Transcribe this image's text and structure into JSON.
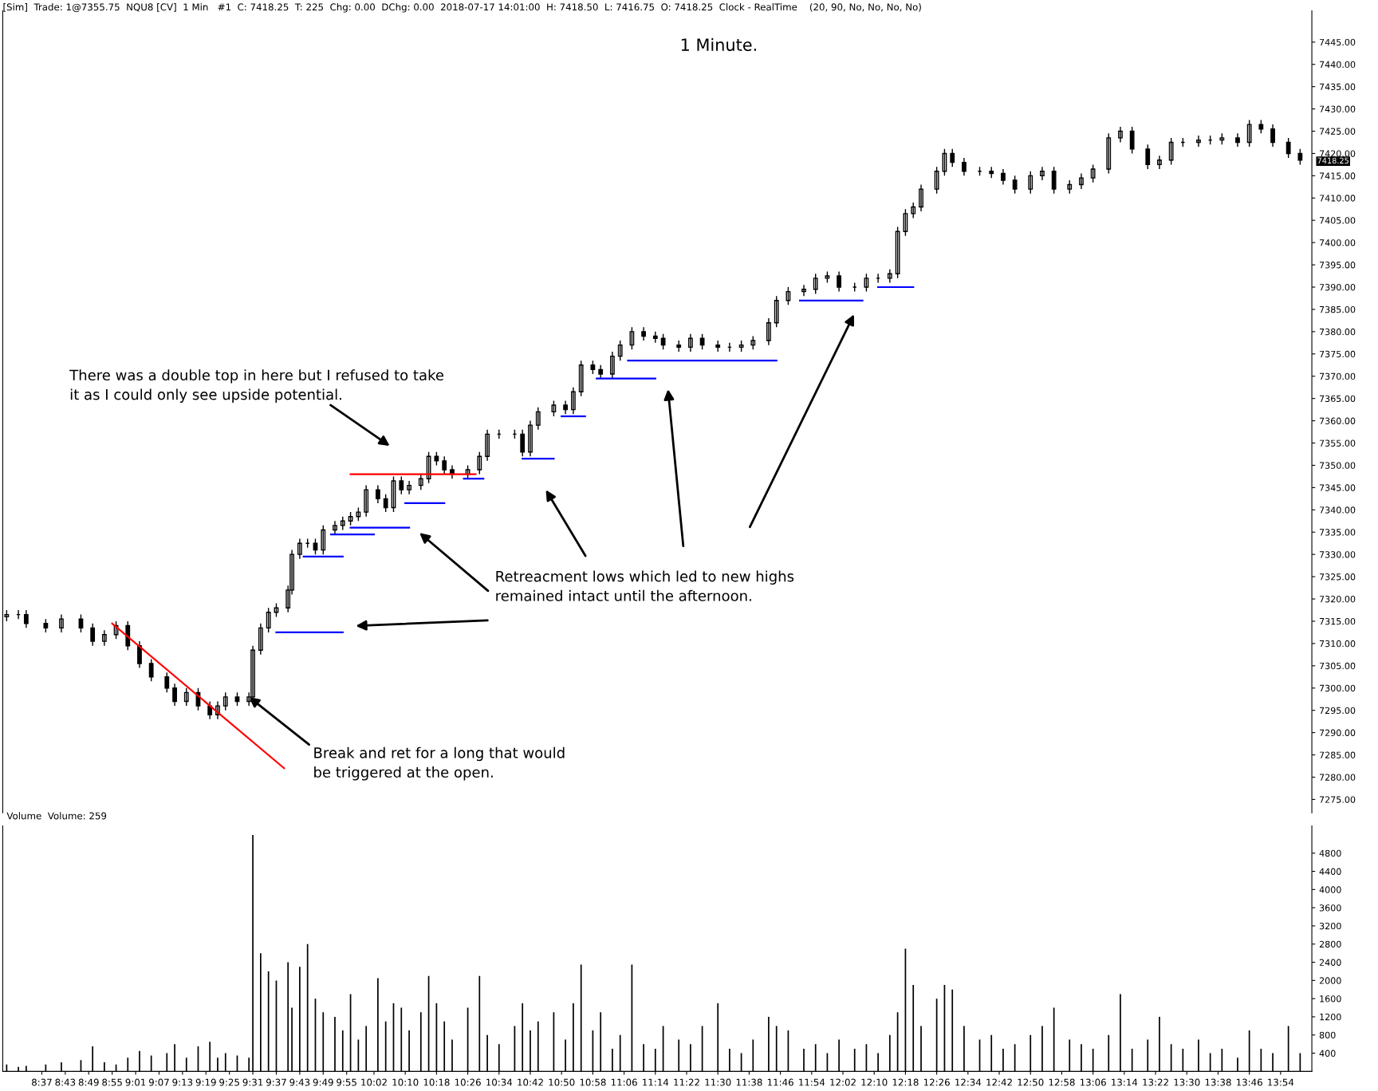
{
  "chart_data": [
    {
      "type": "candlestick",
      "title": "1 Minute.",
      "x": [
        "2018-07-17T08:28",
        "2018-07-17T08:31",
        "2018-07-17T08:33",
        "2018-07-17T08:38",
        "2018-07-17T08:42",
        "2018-07-17T08:47",
        "2018-07-17T08:50",
        "2018-07-17T08:53",
        "2018-07-17T08:56",
        "2018-07-17T08:59",
        "2018-07-17T09:02",
        "2018-07-17T09:05",
        "2018-07-17T09:09",
        "2018-07-17T09:11",
        "2018-07-17T09:14",
        "2018-07-17T09:17",
        "2018-07-17T09:20",
        "2018-07-17T09:22",
        "2018-07-17T09:24",
        "2018-07-17T09:27",
        "2018-07-17T09:30",
        "2018-07-17T09:31",
        "2018-07-17T09:33",
        "2018-07-17T09:35",
        "2018-07-17T09:37",
        "2018-07-17T09:40",
        "2018-07-17T09:41",
        "2018-07-17T09:43",
        "2018-07-17T09:45",
        "2018-07-17T09:47",
        "2018-07-17T09:49",
        "2018-07-17T09:52",
        "2018-07-17T09:54",
        "2018-07-17T09:56",
        "2018-07-17T09:58",
        "2018-07-17T10:00",
        "2018-07-17T10:03",
        "2018-07-17T10:05",
        "2018-07-17T10:07",
        "2018-07-17T10:09",
        "2018-07-17T10:11",
        "2018-07-17T10:14",
        "2018-07-17T10:16",
        "2018-07-17T10:18",
        "2018-07-17T10:20",
        "2018-07-17T10:22",
        "2018-07-17T10:26",
        "2018-07-17T10:29",
        "2018-07-17T10:31",
        "2018-07-17T10:34",
        "2018-07-17T10:38",
        "2018-07-17T10:40",
        "2018-07-17T10:42",
        "2018-07-17T10:44",
        "2018-07-17T10:48",
        "2018-07-17T10:51",
        "2018-07-17T10:53",
        "2018-07-17T10:55",
        "2018-07-17T10:58",
        "2018-07-17T11:00",
        "2018-07-17T11:03",
        "2018-07-17T11:05",
        "2018-07-17T11:08",
        "2018-07-17T11:11",
        "2018-07-17T11:14",
        "2018-07-17T11:16",
        "2018-07-17T11:20",
        "2018-07-17T11:23",
        "2018-07-17T11:26",
        "2018-07-17T11:30",
        "2018-07-17T11:33",
        "2018-07-17T11:36",
        "2018-07-17T11:39",
        "2018-07-17T11:43",
        "2018-07-17T11:45",
        "2018-07-17T11:48",
        "2018-07-17T11:52",
        "2018-07-17T11:55",
        "2018-07-17T11:58",
        "2018-07-17T12:01",
        "2018-07-17T12:05",
        "2018-07-17T12:08",
        "2018-07-17T12:11",
        "2018-07-17T12:14",
        "2018-07-17T12:16",
        "2018-07-17T12:18",
        "2018-07-17T12:20",
        "2018-07-17T12:22",
        "2018-07-17T12:26",
        "2018-07-17T12:28",
        "2018-07-17T12:30",
        "2018-07-17T12:33",
        "2018-07-17T12:37",
        "2018-07-17T12:40",
        "2018-07-17T12:43",
        "2018-07-17T12:46",
        "2018-07-17T12:50",
        "2018-07-17T12:53",
        "2018-07-17T12:56",
        "2018-07-17T13:00",
        "2018-07-17T13:03",
        "2018-07-17T13:06",
        "2018-07-17T13:10",
        "2018-07-17T13:13",
        "2018-07-17T13:16",
        "2018-07-17T13:20",
        "2018-07-17T13:23",
        "2018-07-17T13:26",
        "2018-07-17T13:29",
        "2018-07-17T13:33",
        "2018-07-17T13:36",
        "2018-07-17T13:39",
        "2018-07-17T13:43",
        "2018-07-17T13:46",
        "2018-07-17T13:49",
        "2018-07-17T13:52",
        "2018-07-17T13:56",
        "2018-07-17T13:59"
      ],
      "ohlc": [
        [
          7316,
          7317.5,
          7315,
          7316.5
        ],
        [
          7316.5,
          7317.5,
          7315.5,
          7316.5
        ],
        [
          7316.5,
          7317.5,
          7313.5,
          7314.5
        ],
        [
          7314.5,
          7315.5,
          7312.5,
          7313.5
        ],
        [
          7313.5,
          7316.5,
          7312.5,
          7315.5
        ],
        [
          7315.5,
          7316.5,
          7312.5,
          7313.5
        ],
        [
          7313.5,
          7314.5,
          7309.5,
          7310.5
        ],
        [
          7310.5,
          7313,
          7309.5,
          7312
        ],
        [
          7312,
          7315,
          7311,
          7314
        ],
        [
          7314,
          7315,
          7308.5,
          7309.5
        ],
        [
          7309.5,
          7310.5,
          7304.5,
          7305.5
        ],
        [
          7305.5,
          7306.5,
          7301.5,
          7302.5
        ],
        [
          7302.5,
          7303.5,
          7299,
          7300
        ],
        [
          7300,
          7301,
          7296,
          7297
        ],
        [
          7297,
          7300,
          7296,
          7299
        ],
        [
          7299,
          7300,
          7295,
          7296
        ],
        [
          7296,
          7297,
          7293,
          7294
        ],
        [
          7294,
          7297,
          7293,
          7296
        ],
        [
          7296,
          7299,
          7295,
          7298
        ],
        [
          7298,
          7299,
          7296,
          7297
        ],
        [
          7297,
          7299,
          7296,
          7298
        ],
        [
          7298,
          7309.5,
          7297,
          7308.5
        ],
        [
          7308.5,
          7314.5,
          7307.5,
          7313.5
        ],
        [
          7313.5,
          7318,
          7312.5,
          7317
        ],
        [
          7317,
          7319,
          7316,
          7318
        ],
        [
          7318,
          7323,
          7317,
          7322
        ],
        [
          7322,
          7331,
          7321,
          7330
        ],
        [
          7330,
          7333.5,
          7329,
          7332.5
        ],
        [
          7332.5,
          7333.5,
          7331.5,
          7332.5
        ],
        [
          7332.5,
          7333.5,
          7330,
          7331
        ],
        [
          7331,
          7336.5,
          7330,
          7335.5
        ],
        [
          7335.5,
          7337.5,
          7334.5,
          7336.5
        ],
        [
          7336.5,
          7338.5,
          7335.5,
          7337.5
        ],
        [
          7337.5,
          7339.5,
          7336.5,
          7338.5
        ],
        [
          7338.5,
          7340.5,
          7337.5,
          7339.5
        ],
        [
          7339.5,
          7345.5,
          7338.5,
          7344.5
        ],
        [
          7344.5,
          7345.5,
          7341.5,
          7342.5
        ],
        [
          7342.5,
          7343.5,
          7339.5,
          7340.5
        ],
        [
          7340.5,
          7347.5,
          7339.5,
          7346.5
        ],
        [
          7346.5,
          7347.5,
          7343.5,
          7344.5
        ],
        [
          7344.5,
          7346.5,
          7343.5,
          7345.5
        ],
        [
          7345.5,
          7348,
          7344.5,
          7347
        ],
        [
          7347,
          7353,
          7346,
          7352
        ],
        [
          7352,
          7353,
          7350,
          7351
        ],
        [
          7351,
          7352,
          7348,
          7349
        ],
        [
          7349,
          7350,
          7347,
          7348
        ],
        [
          7348,
          7350,
          7347,
          7349
        ],
        [
          7349,
          7353,
          7348,
          7352
        ],
        [
          7352,
          7358,
          7351,
          7357
        ],
        [
          7357,
          7358,
          7356,
          7357
        ],
        [
          7357,
          7358,
          7356,
          7357
        ],
        [
          7357,
          7358,
          7352,
          7353
        ],
        [
          7353,
          7360,
          7352,
          7359
        ],
        [
          7359,
          7363,
          7358,
          7362
        ],
        [
          7362,
          7364.5,
          7361,
          7363.5
        ],
        [
          7363.5,
          7364.5,
          7361.5,
          7362.5
        ],
        [
          7362.5,
          7367.5,
          7361.5,
          7366.5
        ],
        [
          7366.5,
          7373.5,
          7365.5,
          7372.5
        ],
        [
          7372.5,
          7373.5,
          7370.5,
          7371.5
        ],
        [
          7371.5,
          7372.5,
          7369.5,
          7370.5
        ],
        [
          7370.5,
          7375.5,
          7369.5,
          7374.5
        ],
        [
          7374.5,
          7378,
          7373.5,
          7377
        ],
        [
          7377,
          7381,
          7376,
          7380
        ],
        [
          7380,
          7381,
          7378,
          7379
        ],
        [
          7379,
          7380,
          7377.5,
          7378.5
        ],
        [
          7378.5,
          7379.5,
          7376,
          7377
        ],
        [
          7377,
          7378,
          7375.5,
          7376.5
        ],
        [
          7376.5,
          7379.5,
          7375.5,
          7378.5
        ],
        [
          7378.5,
          7379.5,
          7376,
          7377
        ],
        [
          7377,
          7378,
          7375.5,
          7376.5
        ],
        [
          7376.5,
          7377.5,
          7375.5,
          7376.5
        ],
        [
          7376.5,
          7378,
          7375.5,
          7377
        ],
        [
          7377,
          7379,
          7376,
          7378
        ],
        [
          7378,
          7383,
          7377,
          7382
        ],
        [
          7382,
          7388,
          7381,
          7387
        ],
        [
          7387,
          7390,
          7386,
          7389
        ],
        [
          7389,
          7390.5,
          7388,
          7389.5
        ],
        [
          7389.5,
          7393,
          7388.5,
          7392
        ],
        [
          7392,
          7393.5,
          7391,
          7392.5
        ],
        [
          7392.5,
          7393.5,
          7389,
          7390
        ],
        [
          7390,
          7391,
          7389,
          7390
        ],
        [
          7390,
          7393,
          7389,
          7392
        ],
        [
          7392,
          7393,
          7391,
          7392
        ],
        [
          7392,
          7394,
          7391,
          7393
        ],
        [
          7393,
          7403.5,
          7392,
          7402.5
        ],
        [
          7402.5,
          7407.5,
          7401.5,
          7406.5
        ],
        [
          7406.5,
          7409,
          7405.5,
          7408
        ],
        [
          7408,
          7413,
          7407,
          7412
        ],
        [
          7412,
          7417,
          7411,
          7416
        ],
        [
          7416,
          7421,
          7415,
          7420
        ],
        [
          7420,
          7421,
          7417,
          7418
        ],
        [
          7418,
          7419,
          7415,
          7416
        ],
        [
          7416,
          7417,
          7415,
          7416
        ],
        [
          7416,
          7417,
          7414.5,
          7415.5
        ],
        [
          7415.5,
          7416.5,
          7413,
          7414
        ],
        [
          7414,
          7415,
          7411,
          7412
        ],
        [
          7412,
          7416,
          7411,
          7415
        ],
        [
          7415,
          7417,
          7414,
          7416
        ],
        [
          7416,
          7417,
          7411,
          7412
        ],
        [
          7412,
          7414,
          7411,
          7413
        ],
        [
          7413,
          7415.5,
          7412,
          7414.5
        ],
        [
          7414.5,
          7417.5,
          7413.5,
          7416.5
        ],
        [
          7416.5,
          7424.5,
          7415.5,
          7423.5
        ],
        [
          7423.5,
          7426,
          7422.5,
          7425
        ],
        [
          7425,
          7426,
          7420,
          7421
        ],
        [
          7421,
          7422,
          7416.5,
          7417.5
        ],
        [
          7417.5,
          7419.5,
          7416.5,
          7418.5
        ],
        [
          7418.5,
          7423.5,
          7417.5,
          7422.5
        ],
        [
          7422.5,
          7423.5,
          7421.5,
          7422.5
        ],
        [
          7422.5,
          7424,
          7421.5,
          7423
        ],
        [
          7423,
          7424,
          7422,
          7423
        ],
        [
          7423,
          7424.5,
          7422,
          7423.5
        ],
        [
          7423.5,
          7424.5,
          7421.5,
          7422.5
        ],
        [
          7422.5,
          7427.5,
          7421.5,
          7426.5
        ],
        [
          7426.5,
          7427.5,
          7424.5,
          7425.5
        ],
        [
          7425.5,
          7426.5,
          7421.5,
          7422.5
        ],
        [
          7422.5,
          7423.5,
          7419,
          7420
        ],
        [
          7420,
          7421,
          7417.5,
          7418.5
        ]
      ],
      "series": [
        {
          "type": "line",
          "color": "#ff0000",
          "x": [
            "2018-07-17T08:55",
            "2018-07-17T09:39"
          ],
          "values": [
            7314.5,
            7282
          ]
        },
        {
          "type": "line",
          "color": "#ff0000",
          "x": [
            "2018-07-17T09:56",
            "2018-07-17T10:28"
          ],
          "values": [
            7348,
            7348
          ]
        },
        {
          "type": "line",
          "color": "#0000ff",
          "x": [
            "2018-07-17T09:37",
            "2018-07-17T09:54"
          ],
          "values": [
            7312.5,
            7312.5
          ]
        },
        {
          "type": "line",
          "color": "#0000ff",
          "x": [
            "2018-07-17T09:44",
            "2018-07-17T09:54"
          ],
          "values": [
            7329.5,
            7329.5
          ]
        },
        {
          "type": "line",
          "color": "#0000ff",
          "x": [
            "2018-07-17T09:51",
            "2018-07-17T10:02"
          ],
          "values": [
            7334.5,
            7334.5
          ]
        },
        {
          "type": "line",
          "color": "#0000ff",
          "x": [
            "2018-07-17T09:56",
            "2018-07-17T10:11"
          ],
          "values": [
            7336,
            7336
          ]
        },
        {
          "type": "line",
          "color": "#0000ff",
          "x": [
            "2018-07-17T10:10",
            "2018-07-17T10:20"
          ],
          "values": [
            7341.5,
            7341.5
          ]
        },
        {
          "type": "line",
          "color": "#0000ff",
          "x": [
            "2018-07-17T10:25",
            "2018-07-17T10:30"
          ],
          "values": [
            7347,
            7347
          ]
        },
        {
          "type": "line",
          "color": "#0000ff",
          "x": [
            "2018-07-17T10:40",
            "2018-07-17T10:48"
          ],
          "values": [
            7351.5,
            7351.5
          ]
        },
        {
          "type": "line",
          "color": "#0000ff",
          "x": [
            "2018-07-17T10:50",
            "2018-07-17T10:56"
          ],
          "values": [
            7361,
            7361
          ]
        },
        {
          "type": "line",
          "color": "#0000ff",
          "x": [
            "2018-07-17T10:59",
            "2018-07-17T11:14"
          ],
          "values": [
            7369.5,
            7369.5
          ]
        },
        {
          "type": "line",
          "color": "#0000ff",
          "x": [
            "2018-07-17T11:07",
            "2018-07-17T11:45"
          ],
          "values": [
            7373.5,
            7373.5
          ]
        },
        {
          "type": "line",
          "color": "#0000ff",
          "x": [
            "2018-07-17T11:51",
            "2018-07-17T12:07"
          ],
          "values": [
            7387,
            7387
          ]
        },
        {
          "type": "line",
          "color": "#0000ff",
          "x": [
            "2018-07-17T12:11",
            "2018-07-17T12:20"
          ],
          "values": [
            7390,
            7390
          ]
        }
      ],
      "xlim": [
        "2018-07-17T08:27",
        "2018-07-17T14:02"
      ],
      "ylim": [
        7272,
        7452
      ],
      "yticks": [
        {
          "value": 7275,
          "label": "7275.00"
        },
        {
          "value": 7280,
          "label": "7280.00"
        },
        {
          "value": 7285,
          "label": "7285.00"
        },
        {
          "value": 7290,
          "label": "7290.00"
        },
        {
          "value": 7295,
          "label": "7295.00"
        },
        {
          "value": 7300,
          "label": "7300.00"
        },
        {
          "value": 7305,
          "label": "7305.00"
        },
        {
          "value": 7310,
          "label": "7310.00"
        },
        {
          "value": 7315,
          "label": "7315.00"
        },
        {
          "value": 7320,
          "label": "7320.00"
        },
        {
          "value": 7325,
          "label": "7325.00"
        },
        {
          "value": 7330,
          "label": "7330.00"
        },
        {
          "value": 7335,
          "label": "7335.00"
        },
        {
          "value": 7340,
          "label": "7340.00"
        },
        {
          "value": 7345,
          "label": "7345.00"
        },
        {
          "value": 7350,
          "label": "7350.00"
        },
        {
          "value": 7355,
          "label": "7355.00"
        },
        {
          "value": 7360,
          "label": "7360.00"
        },
        {
          "value": 7365,
          "label": "7365.00"
        },
        {
          "value": 7370,
          "label": "7370.00"
        },
        {
          "value": 7375,
          "label": "7375.00"
        },
        {
          "value": 7380,
          "label": "7380.00"
        },
        {
          "value": 7385,
          "label": "7385.00"
        },
        {
          "value": 7390,
          "label": "7390.00"
        },
        {
          "value": 7395,
          "label": "7395.00"
        },
        {
          "value": 7400,
          "label": "7400.00"
        },
        {
          "value": 7405,
          "label": "7405.00"
        },
        {
          "value": 7410,
          "label": "7410.00"
        },
        {
          "value": 7415,
          "label": "7415.00"
        },
        {
          "value": 7420,
          "label": "7420.00"
        },
        {
          "value": 7425,
          "label": "7425.00"
        },
        {
          "value": 7430,
          "label": "7430.00"
        },
        {
          "value": 7435,
          "label": "7435.00"
        },
        {
          "value": 7440,
          "label": "7440.00"
        },
        {
          "value": 7445,
          "label": "7445.00"
        }
      ],
      "tick_labels": "y",
      "annotations": [
        "[Sim]  Trade: 1@7355.75  NQU8 [CV]  1 Min   #1  C: 7418.25  T: 225  Chg: 0.00  DChg: 0.00  2018-07-17 14:01:00  H: 7418.50  L: 7416.75  O: 7418.25  Clock - RealTime    (20, 90, No, No, No, No)",
        "There was a double top in here but I refused to take\nit as I could only see upside potential.",
        "Retreacment lows which led to new highs\nremained intact until the afternoon.",
        {
          "text": "Break and ret for a long that would\nbe triggered at the open.",
          "x": "2018-07-17T09:30",
          "y": 7298
        },
        "7418.25"
      ]
    },
    {
      "type": "bar",
      "title": "Volume  Volume: 259",
      "color": "#000000",
      "x": [
        "2018-07-17T08:28",
        "2018-07-17T08:31",
        "2018-07-17T08:33",
        "2018-07-17T08:38",
        "2018-07-17T08:42",
        "2018-07-17T08:47",
        "2018-07-17T08:50",
        "2018-07-17T08:53",
        "2018-07-17T08:56",
        "2018-07-17T08:59",
        "2018-07-17T09:02",
        "2018-07-17T09:05",
        "2018-07-17T09:09",
        "2018-07-17T09:11",
        "2018-07-17T09:14",
        "2018-07-17T09:17",
        "2018-07-17T09:20",
        "2018-07-17T09:22",
        "2018-07-17T09:24",
        "2018-07-17T09:27",
        "2018-07-17T09:30",
        "2018-07-17T09:31",
        "2018-07-17T09:33",
        "2018-07-17T09:35",
        "2018-07-17T09:37",
        "2018-07-17T09:40",
        "2018-07-17T09:41",
        "2018-07-17T09:43",
        "2018-07-17T09:45",
        "2018-07-17T09:47",
        "2018-07-17T09:49",
        "2018-07-17T09:52",
        "2018-07-17T09:54",
        "2018-07-17T09:56",
        "2018-07-17T09:58",
        "2018-07-17T10:00",
        "2018-07-17T10:03",
        "2018-07-17T10:05",
        "2018-07-17T10:07",
        "2018-07-17T10:09",
        "2018-07-17T10:11",
        "2018-07-17T10:14",
        "2018-07-17T10:16",
        "2018-07-17T10:18",
        "2018-07-17T10:20",
        "2018-07-17T10:22",
        "2018-07-17T10:26",
        "2018-07-17T10:29",
        "2018-07-17T10:31",
        "2018-07-17T10:34",
        "2018-07-17T10:38",
        "2018-07-17T10:40",
        "2018-07-17T10:42",
        "2018-07-17T10:44",
        "2018-07-17T10:48",
        "2018-07-17T10:51",
        "2018-07-17T10:53",
        "2018-07-17T10:55",
        "2018-07-17T10:58",
        "2018-07-17T11:00",
        "2018-07-17T11:03",
        "2018-07-17T11:05",
        "2018-07-17T11:08",
        "2018-07-17T11:11",
        "2018-07-17T11:14",
        "2018-07-17T11:16",
        "2018-07-17T11:20",
        "2018-07-17T11:23",
        "2018-07-17T11:26",
        "2018-07-17T11:30",
        "2018-07-17T11:33",
        "2018-07-17T11:36",
        "2018-07-17T11:39",
        "2018-07-17T11:43",
        "2018-07-17T11:45",
        "2018-07-17T11:48",
        "2018-07-17T11:52",
        "2018-07-17T11:55",
        "2018-07-17T11:58",
        "2018-07-17T12:01",
        "2018-07-17T12:05",
        "2018-07-17T12:08",
        "2018-07-17T12:11",
        "2018-07-17T12:14",
        "2018-07-17T12:16",
        "2018-07-17T12:18",
        "2018-07-17T12:20",
        "2018-07-17T12:22",
        "2018-07-17T12:26",
        "2018-07-17T12:28",
        "2018-07-17T12:30",
        "2018-07-17T12:33",
        "2018-07-17T12:37",
        "2018-07-17T12:40",
        "2018-07-17T12:43",
        "2018-07-17T12:46",
        "2018-07-17T12:50",
        "2018-07-17T12:53",
        "2018-07-17T12:56",
        "2018-07-17T13:00",
        "2018-07-17T13:03",
        "2018-07-17T13:06",
        "2018-07-17T13:10",
        "2018-07-17T13:13",
        "2018-07-17T13:16",
        "2018-07-17T13:20",
        "2018-07-17T13:23",
        "2018-07-17T13:26",
        "2018-07-17T13:29",
        "2018-07-17T13:33",
        "2018-07-17T13:36",
        "2018-07-17T13:39",
        "2018-07-17T13:43",
        "2018-07-17T13:46",
        "2018-07-17T13:49",
        "2018-07-17T13:52",
        "2018-07-17T13:56",
        "2018-07-17T13:59"
      ],
      "values": [
        150,
        100,
        120,
        150,
        200,
        250,
        550,
        200,
        150,
        300,
        450,
        350,
        400,
        600,
        300,
        550,
        650,
        300,
        400,
        350,
        300,
        5200,
        2600,
        2200,
        2000,
        2400,
        1400,
        2300,
        2800,
        1600,
        1300,
        1200,
        900,
        1700,
        700,
        1000,
        2050,
        1100,
        1500,
        1400,
        900,
        1300,
        2100,
        1500,
        1100,
        700,
        1400,
        2100,
        800,
        600,
        1000,
        1500,
        900,
        1100,
        1300,
        700,
        1500,
        2350,
        900,
        1300,
        500,
        800,
        2350,
        600,
        500,
        1000,
        700,
        600,
        1000,
        1500,
        500,
        400,
        700,
        1200,
        1000,
        900,
        500,
        600,
        400,
        700,
        500,
        600,
        400,
        800,
        1300,
        2700,
        1900,
        1000,
        1600,
        1900,
        1800,
        1000,
        700,
        800,
        500,
        600,
        800,
        1000,
        1400,
        700,
        600,
        500,
        800,
        1700,
        500,
        700,
        1200,
        600,
        500,
        700,
        400,
        500,
        300,
        900,
        500,
        400,
        1000,
        400
      ],
      "xlim": [
        "2018-07-17T08:27",
        "2018-07-17T14:02"
      ],
      "ylim": [
        0,
        5400
      ],
      "yticks": [
        400,
        800,
        1200,
        1600,
        2000,
        2400,
        2800,
        3200,
        3600,
        4000,
        4400,
        4800
      ],
      "xticks": [
        {
          "value": "2018-07-17T08:37",
          "label": "8:37"
        },
        {
          "value": "2018-07-17T08:43",
          "label": "8:43"
        },
        {
          "value": "2018-07-17T08:49",
          "label": "8:49"
        },
        {
          "value": "2018-07-17T08:55",
          "label": "8:55"
        },
        {
          "value": "2018-07-17T09:01",
          "label": "9:01"
        },
        {
          "value": "2018-07-17T09:07",
          "label": "9:07"
        },
        {
          "value": "2018-07-17T09:13",
          "label": "9:13"
        },
        {
          "value": "2018-07-17T09:19",
          "label": "9:19"
        },
        {
          "value": "2018-07-17T09:25",
          "label": "9:25"
        },
        {
          "value": "2018-07-17T09:31",
          "label": "9:31"
        },
        {
          "value": "2018-07-17T09:37",
          "label": "9:37"
        },
        {
          "value": "2018-07-17T09:43",
          "label": "9:43"
        },
        {
          "value": "2018-07-17T09:49",
          "label": "9:49"
        },
        {
          "value": "2018-07-17T09:55",
          "label": "9:55"
        },
        {
          "value": "2018-07-17T10:02",
          "label": "10:02"
        },
        {
          "value": "2018-07-17T10:10",
          "label": "10:10"
        },
        {
          "value": "2018-07-17T10:18",
          "label": "10:18"
        },
        {
          "value": "2018-07-17T10:26",
          "label": "10:26"
        },
        {
          "value": "2018-07-17T10:34",
          "label": "10:34"
        },
        {
          "value": "2018-07-17T10:42",
          "label": "10:42"
        },
        {
          "value": "2018-07-17T10:50",
          "label": "10:50"
        },
        {
          "value": "2018-07-17T10:58",
          "label": "10:58"
        },
        {
          "value": "2018-07-17T11:06",
          "label": "11:06"
        },
        {
          "value": "2018-07-17T11:14",
          "label": "11:14"
        },
        {
          "value": "2018-07-17T11:22",
          "label": "11:22"
        },
        {
          "value": "2018-07-17T11:30",
          "label": "11:30"
        },
        {
          "value": "2018-07-17T11:38",
          "label": "11:38"
        },
        {
          "value": "2018-07-17T11:46",
          "label": "11:46"
        },
        {
          "value": "2018-07-17T11:54",
          "label": "11:54"
        },
        {
          "value": "2018-07-17T12:02",
          "label": "12:02"
        },
        {
          "value": "2018-07-17T12:10",
          "label": "12:10"
        },
        {
          "value": "2018-07-17T12:18",
          "label": "12:18"
        },
        {
          "value": "2018-07-17T12:26",
          "label": "12:26"
        },
        {
          "value": "2018-07-17T12:34",
          "label": "12:34"
        },
        {
          "value": "2018-07-17T12:42",
          "label": "12:42"
        },
        {
          "value": "2018-07-17T12:50",
          "label": "12:50"
        },
        {
          "value": "2018-07-17T12:58",
          "label": "12:58"
        },
        {
          "value": "2018-07-17T13:06",
          "label": "13:06"
        },
        {
          "value": "2018-07-17T13:14",
          "label": "13:14"
        },
        {
          "value": "2018-07-17T13:22",
          "label": "13:22"
        },
        {
          "value": "2018-07-17T13:30",
          "label": "13:30"
        },
        {
          "value": "2018-07-17T13:38",
          "label": "13:38"
        },
        {
          "value": "2018-07-17T13:46",
          "label": "13:46"
        },
        {
          "value": "2018-07-17T13:54",
          "label": "13:54"
        }
      ]
    }
  ]
}
